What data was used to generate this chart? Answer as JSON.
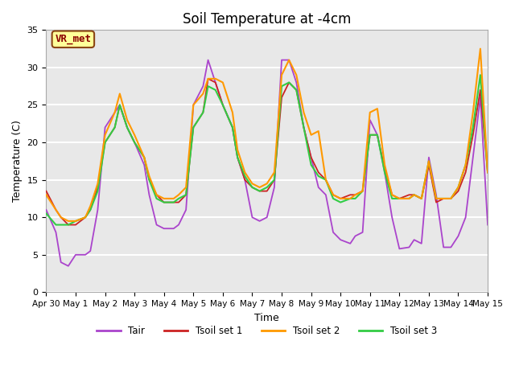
{
  "title": "Soil Temperature at -4cm",
  "xlabel": "Time",
  "ylabel": "Temperature (C)",
  "ylim": [
    0,
    35
  ],
  "xlim": [
    0,
    15
  ],
  "background_color": "#e8e8e8",
  "grid_color": "#ffffff",
  "label_box_text": "VR_met",
  "label_box_facecolor": "#ffff99",
  "label_box_edgecolor": "#8B4513",
  "label_box_textcolor": "#8B0000",
  "xtick_labels": [
    "Apr 30",
    "May 1",
    "May 2",
    "May 3",
    "May 4",
    "May 5",
    "May 6",
    "May 7",
    "May 8",
    "May 9",
    "May 10",
    "May 11",
    "May 12",
    "May 13",
    "May 14",
    "May 15"
  ],
  "ytick_values": [
    0,
    5,
    10,
    15,
    20,
    25,
    30,
    35
  ],
  "line_colors": {
    "Tair": "#aa44cc",
    "Tsoil set 1": "#cc2222",
    "Tsoil set 2": "#ff9900",
    "Tsoil set 3": "#33cc44"
  },
  "Tair_x": [
    0,
    0.33,
    0.5,
    0.75,
    1.0,
    1.33,
    1.5,
    1.75,
    2.0,
    2.33,
    2.5,
    2.75,
    3.0,
    3.33,
    3.5,
    3.75,
    4.0,
    4.33,
    4.5,
    4.75,
    5.0,
    5.33,
    5.5,
    5.75,
    6.0,
    6.33,
    6.5,
    6.75,
    7.0,
    7.25,
    7.5,
    7.75,
    8.0,
    8.25,
    8.5,
    8.75,
    9.0,
    9.25,
    9.5,
    9.75,
    10.0,
    10.33,
    10.5,
    10.75,
    11.0,
    11.25,
    11.5,
    11.75,
    12.0,
    12.33,
    12.5,
    12.75,
    13.0,
    13.25,
    13.5,
    13.75,
    14.0,
    14.25,
    14.5,
    14.75,
    15.0
  ],
  "Tair": [
    11,
    8,
    4,
    3.5,
    5,
    5,
    5.5,
    11,
    22,
    24,
    25,
    22,
    20,
    17,
    13,
    9,
    8.5,
    8.5,
    9,
    11,
    25,
    27.5,
    31,
    28,
    25,
    22,
    18,
    15,
    10,
    9.5,
    10,
    14,
    31,
    31,
    28,
    22,
    18,
    14,
    13,
    8,
    7,
    6.5,
    7.5,
    8,
    23,
    21,
    16,
    10,
    5.8,
    6,
    7,
    6.5,
    18,
    13,
    6,
    6,
    7.5,
    10,
    18,
    26,
    9
  ],
  "Tsoil1_x": [
    0,
    0.33,
    0.5,
    0.75,
    1.0,
    1.33,
    1.5,
    1.75,
    2.0,
    2.33,
    2.5,
    2.75,
    3.0,
    3.33,
    3.5,
    3.75,
    4.0,
    4.33,
    4.5,
    4.75,
    5.0,
    5.33,
    5.5,
    5.75,
    6.0,
    6.33,
    6.5,
    6.75,
    7.0,
    7.25,
    7.5,
    7.75,
    8.0,
    8.25,
    8.5,
    8.75,
    9.0,
    9.25,
    9.5,
    9.75,
    10.0,
    10.33,
    10.5,
    10.75,
    11.0,
    11.25,
    11.5,
    11.75,
    12.0,
    12.33,
    12.5,
    12.75,
    13.0,
    13.25,
    13.5,
    13.75,
    14.0,
    14.25,
    14.5,
    14.75,
    15.0
  ],
  "Tsoil1": [
    13.5,
    11,
    10,
    9,
    9,
    10,
    11,
    14,
    20,
    22,
    25,
    22,
    20,
    18,
    15,
    13,
    12,
    12,
    12,
    13,
    22,
    24,
    28.5,
    28,
    25,
    22,
    18,
    15,
    14,
    13.5,
    13.5,
    15,
    26,
    28,
    27,
    22,
    18,
    16,
    15,
    13,
    12.5,
    13,
    13,
    13.5,
    21,
    21,
    16.5,
    13,
    12.5,
    13,
    13,
    12.5,
    17,
    12,
    12.5,
    12.5,
    13.5,
    16,
    21,
    27,
    16
  ],
  "Tsoil2_x": [
    0,
    0.33,
    0.5,
    0.75,
    1.0,
    1.33,
    1.5,
    1.75,
    2.0,
    2.33,
    2.5,
    2.75,
    3.0,
    3.33,
    3.5,
    3.75,
    4.0,
    4.33,
    4.5,
    4.75,
    5.0,
    5.33,
    5.5,
    5.75,
    6.0,
    6.33,
    6.5,
    6.75,
    7.0,
    7.25,
    7.5,
    7.75,
    8.0,
    8.25,
    8.5,
    8.75,
    9.0,
    9.25,
    9.5,
    9.75,
    10.0,
    10.33,
    10.5,
    10.75,
    11.0,
    11.25,
    11.5,
    11.75,
    12.0,
    12.33,
    12.5,
    12.75,
    13.0,
    13.25,
    13.5,
    13.75,
    14.0,
    14.25,
    14.5,
    14.75,
    15.0
  ],
  "Tsoil2": [
    13,
    11,
    10,
    9.5,
    9.5,
    10,
    11.5,
    14.5,
    21,
    24,
    26.5,
    23,
    21,
    18,
    15.5,
    13,
    12.5,
    12.5,
    13,
    14,
    25,
    26.5,
    28.5,
    28.5,
    28,
    24,
    19,
    16,
    14.5,
    14,
    14.5,
    16,
    29,
    31,
    29,
    24,
    21,
    21.5,
    15,
    13,
    12.5,
    12.5,
    13,
    13.5,
    24,
    24.5,
    17,
    13,
    12.5,
    12.5,
    13,
    12.5,
    17.5,
    12.5,
    12.5,
    12.5,
    14,
    17,
    24,
    32.5,
    16
  ],
  "Tsoil3_x": [
    0,
    0.33,
    0.5,
    0.75,
    1.0,
    1.33,
    1.5,
    1.75,
    2.0,
    2.33,
    2.5,
    2.75,
    3.0,
    3.33,
    3.5,
    3.75,
    4.0,
    4.33,
    4.5,
    4.75,
    5.0,
    5.33,
    5.5,
    5.75,
    6.0,
    6.33,
    6.5,
    6.75,
    7.0,
    7.25,
    7.5,
    7.75,
    8.0,
    8.25,
    8.5,
    8.75,
    9.0,
    9.25,
    9.5,
    9.75,
    10.0,
    10.33,
    10.5,
    10.75,
    11.0,
    11.25,
    11.5,
    11.75,
    12.0,
    12.33,
    12.5,
    12.75,
    13.0,
    13.25,
    13.5,
    13.75,
    14.0,
    14.25,
    14.5,
    14.75,
    15.0
  ],
  "Tsoil3": [
    10.5,
    9,
    9,
    9,
    9.5,
    10,
    11,
    13.5,
    20,
    22,
    25,
    22,
    20,
    18,
    15,
    12.5,
    12,
    12,
    12.5,
    13,
    22,
    24,
    27.5,
    27,
    25,
    22,
    18,
    15.5,
    14,
    13.5,
    14,
    15,
    27.5,
    28,
    27,
    22,
    17,
    15.5,
    15,
    12.5,
    12,
    12.5,
    12.5,
    13.5,
    21,
    21,
    16,
    12.5,
    12.5,
    12.5,
    13,
    12.5,
    17.5,
    12.5,
    12.5,
    12.5,
    14,
    17,
    22,
    29,
    16
  ]
}
